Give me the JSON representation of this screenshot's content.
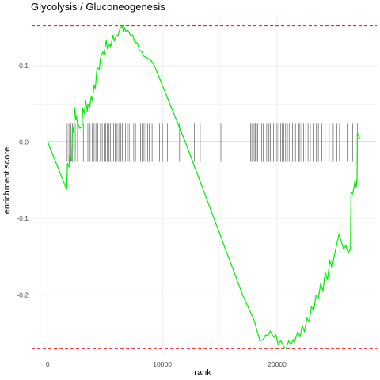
{
  "chart_data": {
    "type": "line",
    "title": "Glycolysis / Gluconeogenesis",
    "xlabel": "rank",
    "ylabel": "enrichment score",
    "xlim": [
      -1400,
      28700
    ],
    "ylim": [
      -0.278,
      0.163
    ],
    "x_ticks": [
      0,
      10000,
      20000
    ],
    "x_tick_labels": [
      "0",
      "10000",
      "20000"
    ],
    "y_ticks": [
      -0.2,
      -0.1,
      0.0,
      0.1
    ],
    "y_tick_labels": [
      "-0.2",
      "-0.1",
      "0.0",
      "0.1"
    ],
    "grid": true,
    "reference_lines": {
      "max_es": 0.152,
      "min_es": -0.27,
      "zero": 0.0
    },
    "series": [
      {
        "color": "#00ee00",
        "x": [
          0,
          1650,
          1720,
          1850,
          1900,
          2100,
          2150,
          2250,
          2350,
          2450,
          2500,
          2600,
          2800,
          3000,
          3050,
          3200,
          3300,
          3450,
          3500,
          3650,
          3800,
          3900,
          4050,
          4150,
          4300,
          4500,
          4600,
          4800,
          4900,
          5100,
          5200,
          5400,
          5500,
          5700,
          5800,
          6000,
          6100,
          6300,
          6500,
          6600,
          6700,
          6800,
          7000,
          7200,
          7400,
          7600,
          7800,
          8000,
          8200,
          8400,
          8700,
          9000,
          9300,
          12000,
          15000,
          17000,
          18000,
          18500,
          18800,
          19000,
          19200,
          19400,
          19700,
          19900,
          20100,
          20300,
          20400,
          20600,
          20800,
          21000,
          21200,
          21400,
          21500,
          21800,
          22000,
          22200,
          22400,
          22600,
          22800,
          23000,
          23200,
          23400,
          23600,
          23800,
          24000,
          24200,
          24400,
          24600,
          24800,
          25000,
          25400,
          25800,
          26000,
          26200,
          26400,
          26450,
          26600,
          26800,
          26900,
          26980,
          27000,
          27100,
          27250
        ],
        "y": [
          0.0,
          -0.062,
          -0.028,
          -0.033,
          -0.018,
          -0.025,
          0.02,
          0.012,
          0.045,
          0.03,
          0.033,
          0.025,
          0.018,
          0.02,
          0.045,
          0.037,
          0.055,
          0.04,
          0.05,
          0.045,
          0.06,
          0.055,
          0.075,
          0.07,
          0.098,
          0.095,
          0.11,
          0.118,
          0.115,
          0.133,
          0.122,
          0.128,
          0.125,
          0.14,
          0.132,
          0.14,
          0.138,
          0.148,
          0.152,
          0.144,
          0.15,
          0.145,
          0.146,
          0.14,
          0.14,
          0.13,
          0.13,
          0.12,
          0.118,
          0.112,
          0.11,
          0.107,
          0.1,
          0.0,
          -0.12,
          -0.2,
          -0.233,
          -0.26,
          -0.258,
          -0.252,
          -0.253,
          -0.247,
          -0.255,
          -0.252,
          -0.265,
          -0.26,
          -0.262,
          -0.268,
          -0.27,
          -0.26,
          -0.265,
          -0.258,
          -0.262,
          -0.248,
          -0.255,
          -0.24,
          -0.248,
          -0.23,
          -0.235,
          -0.215,
          -0.22,
          -0.2,
          -0.205,
          -0.185,
          -0.195,
          -0.17,
          -0.18,
          -0.155,
          -0.165,
          -0.148,
          -0.12,
          -0.14,
          -0.135,
          -0.145,
          -0.14,
          -0.065,
          -0.068,
          -0.05,
          -0.06,
          -0.045,
          0.012,
          0.008,
          0.005
        ]
      }
    ],
    "gene_hits": [
      1700,
      1850,
      2000,
      2150,
      2300,
      2400,
      2600,
      3100,
      3250,
      3500,
      3700,
      3900,
      4050,
      4200,
      4350,
      4600,
      4750,
      4900,
      5050,
      5200,
      5350,
      5450,
      5600,
      5750,
      5900,
      6050,
      6200,
      6350,
      6500,
      6650,
      6800,
      6950,
      7100,
      7250,
      7500,
      7650,
      8100,
      8250,
      8400,
      8550,
      8700,
      8850,
      9100,
      9750,
      10000,
      10450,
      11500,
      12800,
      13300,
      15100,
      17700,
      17800,
      17900,
      18000,
      18100,
      18200,
      18300,
      18650,
      18800,
      19100,
      19200,
      19300,
      19400,
      19550,
      19700,
      19850,
      20000,
      20150,
      20300,
      20450,
      20600,
      20750,
      20900,
      21050,
      21200,
      21350,
      21600,
      21900,
      22000,
      22150,
      22300,
      22500,
      22700,
      22900,
      23200,
      23400,
      23600,
      23900,
      24200,
      24550,
      24900,
      25200,
      25450,
      26100,
      26600,
      26800,
      27000
    ]
  }
}
